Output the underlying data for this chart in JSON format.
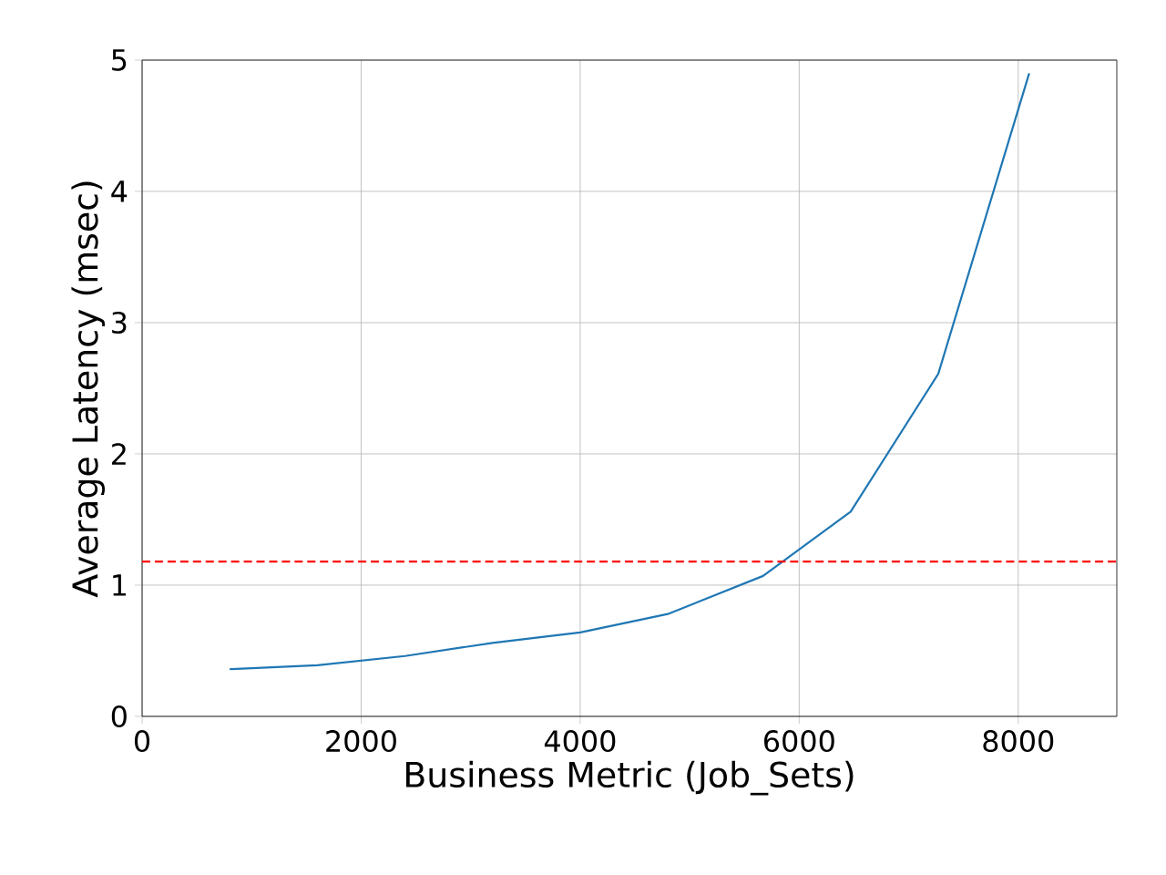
{
  "chart_data": {
    "type": "line",
    "xlabel": "Business Metric (Job_Sets)",
    "ylabel": "Average Latency (msec)",
    "x": [
      800,
      1600,
      2400,
      3200,
      4000,
      4800,
      5670,
      6470,
      7270,
      8100
    ],
    "series": [
      {
        "color": "#1f77b4",
        "values": [
          0.36,
          0.39,
          0.46,
          0.56,
          0.64,
          0.78,
          1.07,
          1.56,
          2.61,
          4.9
        ]
      }
    ],
    "xlim": [
      0,
      8900
    ],
    "ylim": [
      0,
      5
    ],
    "xticks": [
      0,
      2000,
      4000,
      6000,
      8000
    ],
    "yticks": [
      0,
      1,
      2,
      3,
      4,
      5
    ],
    "grid": true,
    "ref_lines": [
      {
        "axis": "y",
        "value": 1.18,
        "color": "#ff0000",
        "line_style": "dashed"
      }
    ]
  }
}
